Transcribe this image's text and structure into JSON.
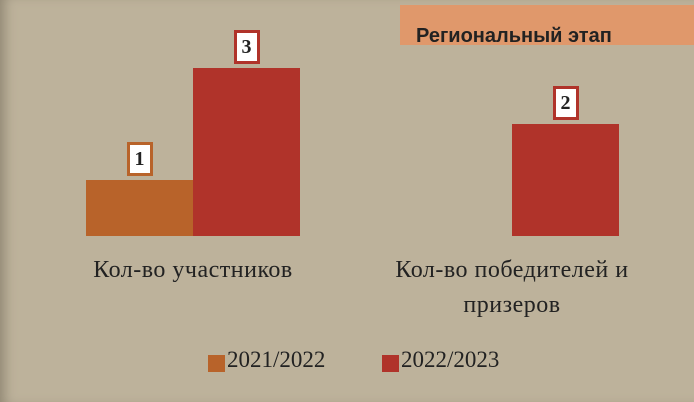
{
  "chart_data": {
    "type": "bar",
    "title": "Региональный этап",
    "categories": [
      "Кол-во участников",
      "Кол-во победителей и призеров"
    ],
    "series": [
      {
        "name": "2021/2022",
        "color": "#b8632a",
        "values": [
          1,
          null
        ]
      },
      {
        "name": "2022/2023",
        "color": "#b0332a",
        "values": [
          3,
          2
        ]
      }
    ],
    "legend": "bottom"
  }
}
